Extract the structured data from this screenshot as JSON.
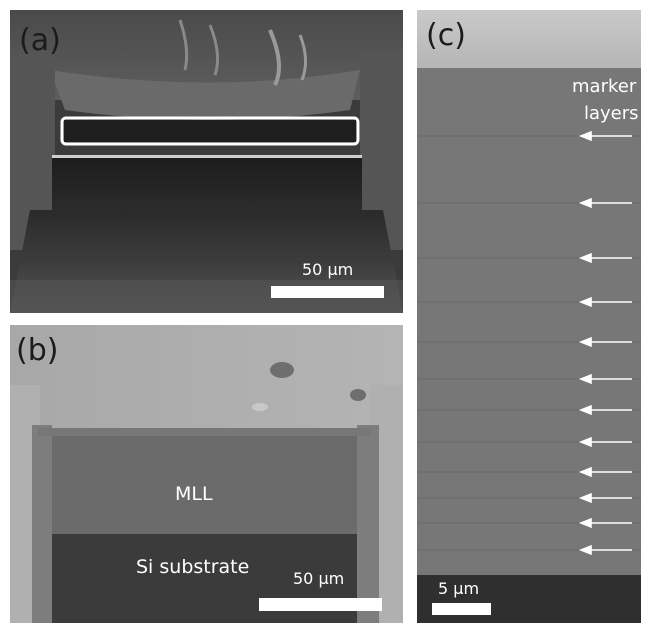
{
  "panels": {
    "a": {
      "label": "(a)",
      "scale_label": "50 μm"
    },
    "b": {
      "label": "(b)",
      "scale_label": "50 μm",
      "text_mll": "MLL",
      "text_si": "Si substrate"
    },
    "c": {
      "label": "(c)",
      "scale_label": "5 μm",
      "annotation_line1": "marker",
      "annotation_line2": "layers",
      "marker_count": 12
    }
  }
}
